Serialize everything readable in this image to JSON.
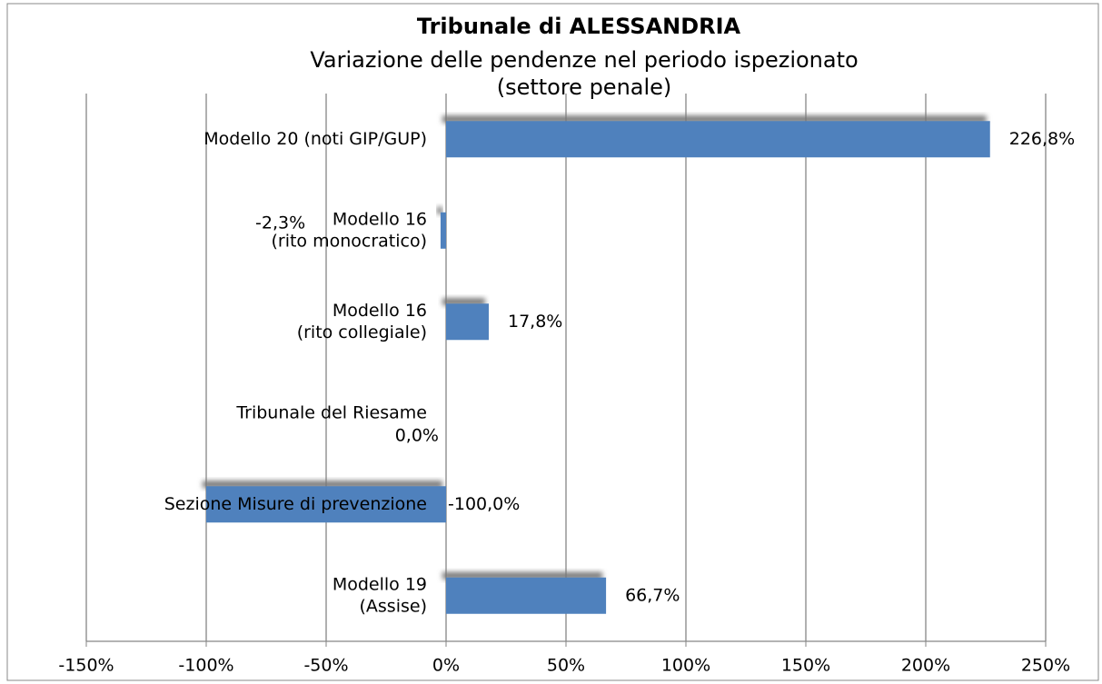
{
  "chart_data": {
    "type": "bar",
    "orientation": "horizontal",
    "title": "Tribunale di ALESSANDRIA",
    "subtitle": [
      "Variazione delle pendenze nel periodo ispezionato",
      "(settore penale)"
    ],
    "categories": [
      [
        "Modello 20 (noti GIP/GUP)"
      ],
      [
        "Modello 16",
        "(rito monocratico)"
      ],
      [
        "Modello 16",
        "(rito collegiale)"
      ],
      [
        "Tribunale del Riesame"
      ],
      [
        "Sezione Misure di prevenzione"
      ],
      [
        "Modello 19",
        "(Assise)"
      ]
    ],
    "values": [
      226.8,
      -2.3,
      17.8,
      0,
      -100,
      66.7
    ],
    "value_labels": [
      "226,8%",
      "-2,3%",
      "17,8%",
      "0,0%",
      "-100,0%",
      "66,7%"
    ],
    "color": "#4f81bd",
    "xlim": [
      -150,
      250
    ],
    "xticks": [
      {
        "value": -150,
        "label": "-150%"
      },
      {
        "value": -100,
        "label": "-100%"
      },
      {
        "value": -50,
        "label": "-50%"
      },
      {
        "value": 0,
        "label": "0%"
      },
      {
        "value": 50,
        "label": "50%"
      },
      {
        "value": 100,
        "label": "100%"
      },
      {
        "value": 150,
        "label": "150%"
      },
      {
        "value": 200,
        "label": "200%"
      },
      {
        "value": 250,
        "label": "250%"
      }
    ],
    "grid": true
  }
}
